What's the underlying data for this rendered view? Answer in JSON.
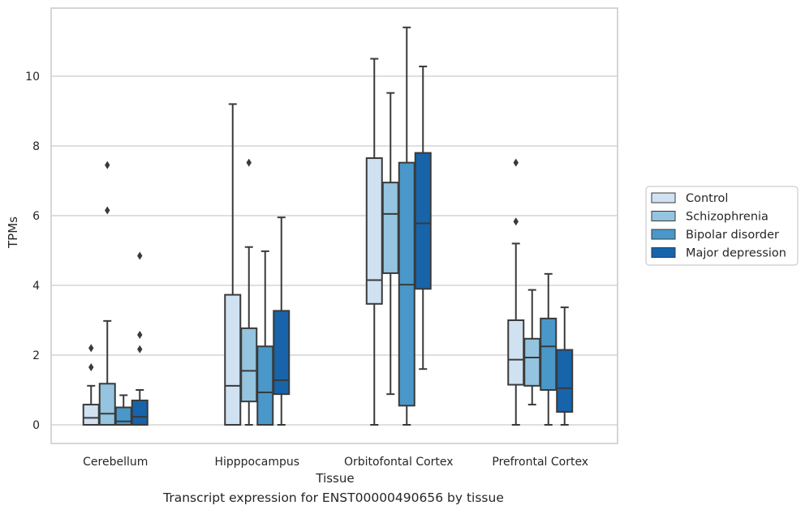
{
  "caption": "Transcript expression for ENST00000490656 by tissue",
  "chart_data": {
    "type": "boxplot",
    "xlabel": "Tissue",
    "ylabel": "TPMs",
    "ylim": [
      -0.55,
      12.0
    ],
    "yticks": [
      0,
      2,
      4,
      6,
      8,
      10
    ],
    "grid": "horizontal",
    "legend_position": "right-outside",
    "categories": [
      "Cerebellum",
      "Hipppocampus",
      "Orbitofontal Cortex",
      "Prefrontal Cortex"
    ],
    "series": [
      {
        "name": "Control",
        "color": "#d0e1f2",
        "boxes": [
          {
            "whislo": 0.0,
            "q1": 0.0,
            "med": 0.2,
            "q3": 0.58,
            "whishi": 1.12,
            "fliers": [
              1.65,
              2.2
            ]
          },
          {
            "whislo": 0.0,
            "q1": 0.0,
            "med": 1.12,
            "q3": 3.73,
            "whishi": 9.2,
            "fliers": []
          },
          {
            "whislo": 0.0,
            "q1": 3.47,
            "med": 4.15,
            "q3": 7.65,
            "whishi": 10.5,
            "fliers": []
          },
          {
            "whislo": 0.0,
            "q1": 1.15,
            "med": 1.87,
            "q3": 3.0,
            "whishi": 5.2,
            "fliers": [
              5.83,
              7.52
            ]
          }
        ]
      },
      {
        "name": "Schizophrenia",
        "color": "#94c4df",
        "boxes": [
          {
            "whislo": 0.0,
            "q1": 0.0,
            "med": 0.32,
            "q3": 1.18,
            "whishi": 2.98,
            "fliers": [
              6.15,
              7.45
            ]
          },
          {
            "whislo": 0.0,
            "q1": 0.67,
            "med": 1.55,
            "q3": 2.77,
            "whishi": 5.1,
            "fliers": [
              7.52
            ]
          },
          {
            "whislo": 0.88,
            "q1": 4.35,
            "med": 6.05,
            "q3": 6.95,
            "whishi": 9.52,
            "fliers": []
          },
          {
            "whislo": 0.58,
            "q1": 1.12,
            "med": 1.93,
            "q3": 2.47,
            "whishi": 3.87,
            "fliers": []
          }
        ]
      },
      {
        "name": "Bipolar disorder",
        "color": "#4a98c9",
        "boxes": [
          {
            "whislo": 0.0,
            "q1": 0.0,
            "med": 0.1,
            "q3": 0.5,
            "whishi": 0.85,
            "fliers": []
          },
          {
            "whislo": 0.0,
            "q1": 0.0,
            "med": 0.93,
            "q3": 2.25,
            "whishi": 4.98,
            "fliers": []
          },
          {
            "whislo": 0.0,
            "q1": 0.55,
            "med": 4.02,
            "q3": 7.52,
            "whishi": 11.4,
            "fliers": []
          },
          {
            "whislo": 0.0,
            "q1": 1.0,
            "med": 2.25,
            "q3": 3.05,
            "whishi": 4.33,
            "fliers": []
          }
        ]
      },
      {
        "name": "Major depression",
        "color": "#1764ab",
        "boxes": [
          {
            "whislo": 0.0,
            "q1": 0.0,
            "med": 0.23,
            "q3": 0.7,
            "whishi": 1.0,
            "fliers": [
              2.17,
              2.58,
              4.85
            ]
          },
          {
            "whislo": 0.0,
            "q1": 0.88,
            "med": 1.28,
            "q3": 3.27,
            "whishi": 5.95,
            "fliers": []
          },
          {
            "whislo": 1.6,
            "q1": 3.9,
            "med": 5.78,
            "q3": 7.8,
            "whishi": 10.28,
            "fliers": []
          },
          {
            "whislo": 0.0,
            "q1": 0.37,
            "med": 1.05,
            "q3": 2.15,
            "whishi": 3.37,
            "fliers": []
          }
        ]
      }
    ]
  }
}
